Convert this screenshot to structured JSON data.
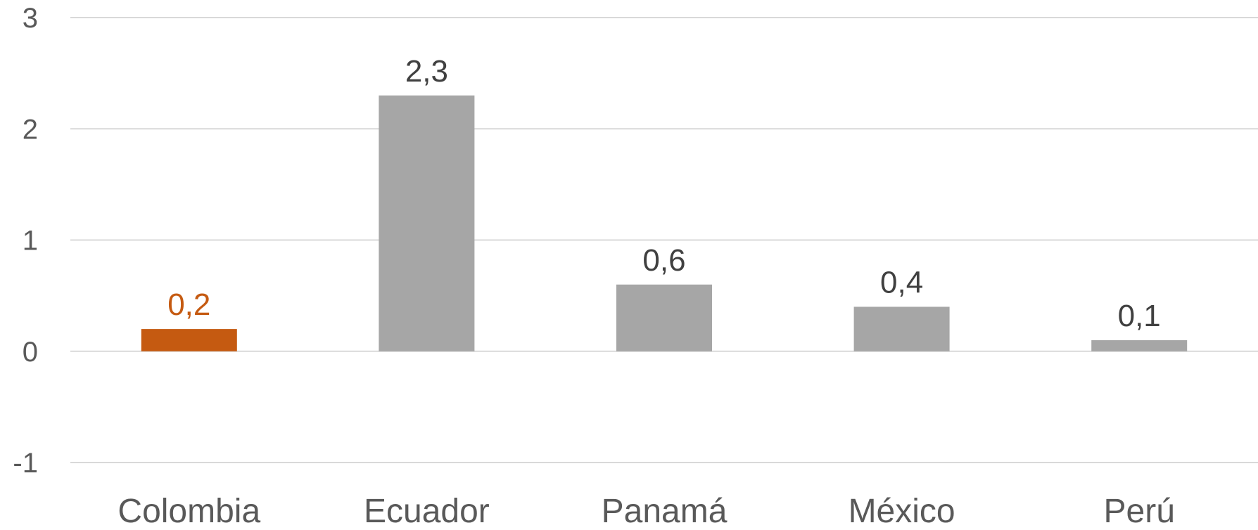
{
  "chart_data": {
    "type": "bar",
    "categories": [
      "Colombia",
      "Ecuador",
      "Panamá",
      "México",
      "Perú"
    ],
    "values": [
      0.2,
      2.3,
      0.6,
      0.4,
      0.1
    ],
    "data_labels": [
      "0,2",
      "2,3",
      "0,6",
      "0,4",
      "0,1"
    ],
    "bar_colors": [
      "#c55a11",
      "#a6a6a6",
      "#a6a6a6",
      "#a6a6a6",
      "#a6a6a6"
    ],
    "label_colors": [
      "#c55a11",
      "#404040",
      "#404040",
      "#404040",
      "#404040"
    ],
    "ylim": [
      -1,
      3
    ],
    "yticks": [
      -1,
      0,
      1,
      2,
      3
    ],
    "ytick_labels": [
      "-1",
      "0",
      "1",
      "2",
      "3"
    ],
    "grid": true,
    "legend": "none",
    "title": "",
    "xlabel": "",
    "ylabel": ""
  }
}
